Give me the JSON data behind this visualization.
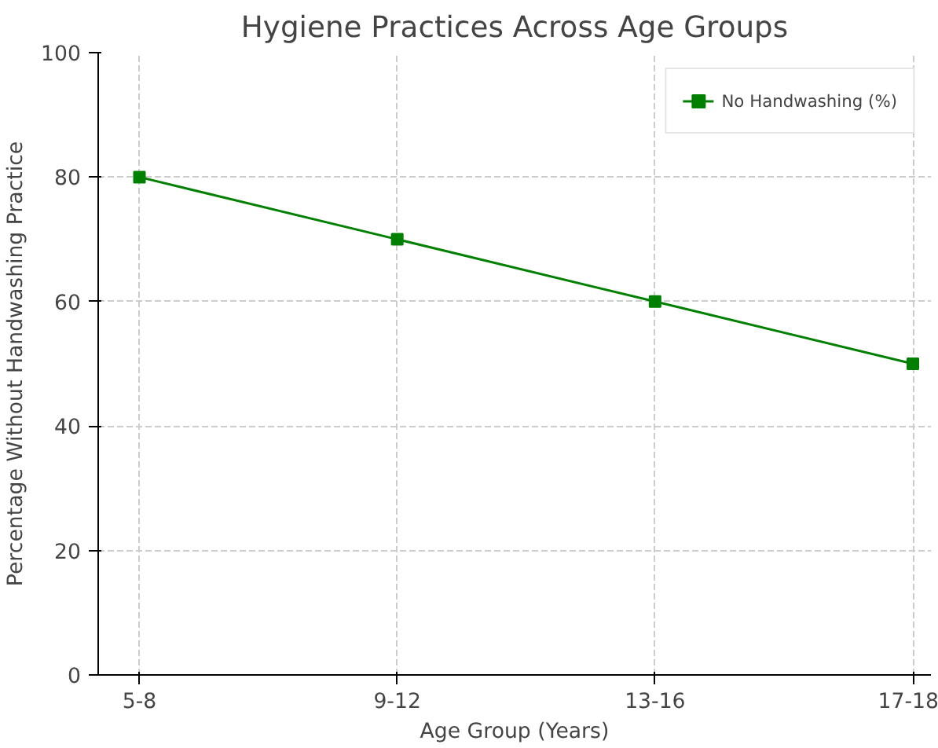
{
  "chart_data": {
    "type": "line",
    "title": "Hygiene Practices Across Age Groups",
    "xlabel": "Age Group (Years)",
    "ylabel": "Percentage Without Handwashing Practice",
    "categories": [
      "5-8",
      "9-12",
      "13-16",
      "17-18"
    ],
    "series": [
      {
        "name": "No Handwashing (%)",
        "color": "#008000",
        "values": [
          80,
          70,
          60,
          50
        ]
      }
    ],
    "ylim": [
      0,
      100
    ],
    "yticks": [
      0,
      20,
      40,
      60,
      80,
      100
    ],
    "grid": true,
    "legend": "top right",
    "marker": "square",
    "line_style": "solid"
  }
}
